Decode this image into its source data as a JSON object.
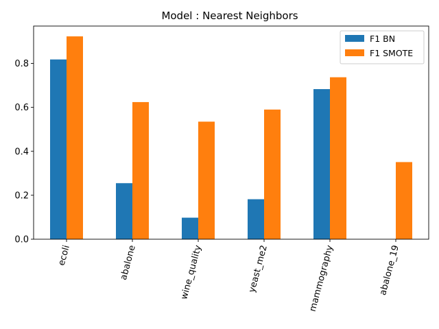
{
  "chart_data": {
    "type": "bar",
    "title": "Model : Nearest Neighbors",
    "xlabel": "",
    "ylabel": "",
    "categories": [
      "ecoli",
      "abalone",
      "wine_quality",
      "yeast_me2",
      "mammography",
      "abalone_19"
    ],
    "series": [
      {
        "name": "F1 BN",
        "color": "#1f77b4",
        "values": [
          0.818,
          0.255,
          0.098,
          0.182,
          0.683,
          0.0
        ]
      },
      {
        "name": "F1 SMOTE",
        "color": "#ff7f0e",
        "values": [
          0.923,
          0.624,
          0.535,
          0.59,
          0.737,
          0.351
        ]
      }
    ],
    "ylim": [
      0,
      0.97
    ],
    "yticks": [
      0.0,
      0.2,
      0.4,
      0.6,
      0.8
    ],
    "ytick_labels": [
      "0.0",
      "0.2",
      "0.4",
      "0.6",
      "0.8"
    ],
    "xtick_rotation_deg": 75,
    "grid": false,
    "legend_position": "top-right"
  }
}
